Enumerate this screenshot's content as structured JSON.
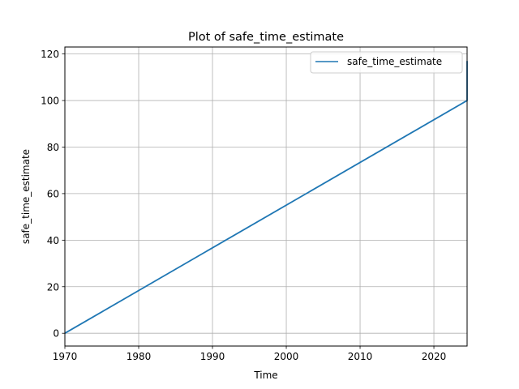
{
  "chart_data": {
    "type": "line",
    "title": "Plot of safe_time_estimate",
    "xlabel": "Time",
    "ylabel": "safe_time_estimate",
    "x_tick_labels": [
      "1970",
      "1980",
      "1990",
      "2000",
      "2010",
      "2020"
    ],
    "x_ticks": [
      1970,
      1980,
      1990,
      2000,
      2010,
      2020
    ],
    "y_tick_labels": [
      "0",
      "20",
      "40",
      "60",
      "80",
      "100",
      "120"
    ],
    "y_ticks": [
      0,
      20,
      40,
      60,
      80,
      100,
      120
    ],
    "xlim": [
      1970,
      2024.5
    ],
    "ylim": [
      -5.5,
      123
    ],
    "grid": true,
    "legend_position": "top-right",
    "series": [
      {
        "name": "safe_time_estimate",
        "color": "#1f77b4",
        "x": [
          1970,
          2024.5,
          2024.5
        ],
        "y": [
          0,
          100,
          117
        ]
      }
    ]
  }
}
